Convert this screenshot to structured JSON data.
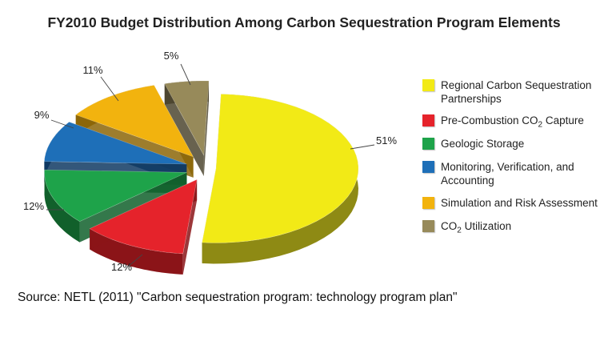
{
  "chart_data": {
    "type": "pie",
    "title": "FY2010 Budget Distribution Among Carbon Sequestration Program Elements",
    "slices": [
      {
        "label": "Regional Carbon Sequestration Partnerships",
        "value": 51,
        "display": "51%",
        "color": "#f2ea16",
        "side": "#8e8a14"
      },
      {
        "label": "Pre-Combustion CO2 Capture",
        "value": 12,
        "display": "12%",
        "color": "#e5232b",
        "side": "#8b1418"
      },
      {
        "label": "Geologic Storage",
        "value": 12,
        "display": "12%",
        "color": "#1ea34a",
        "side": "#11602b"
      },
      {
        "label": "Monitoring, Verification, and Accounting",
        "value": 9,
        "display": "9%",
        "color": "#1e6fb8",
        "side": "#0f3a63"
      },
      {
        "label": "Simulation and Risk Assessment",
        "value": 11,
        "display": "11%",
        "color": "#f2b30e",
        "side": "#8c6608"
      },
      {
        "label": "CO2 Utilization",
        "value": 5,
        "display": "5%",
        "color": "#978a5a",
        "side": "#4d4630"
      }
    ],
    "legend_position": "right"
  },
  "source_note": "Source: NETL (2011) \"Carbon sequestration program: technology program plan\""
}
